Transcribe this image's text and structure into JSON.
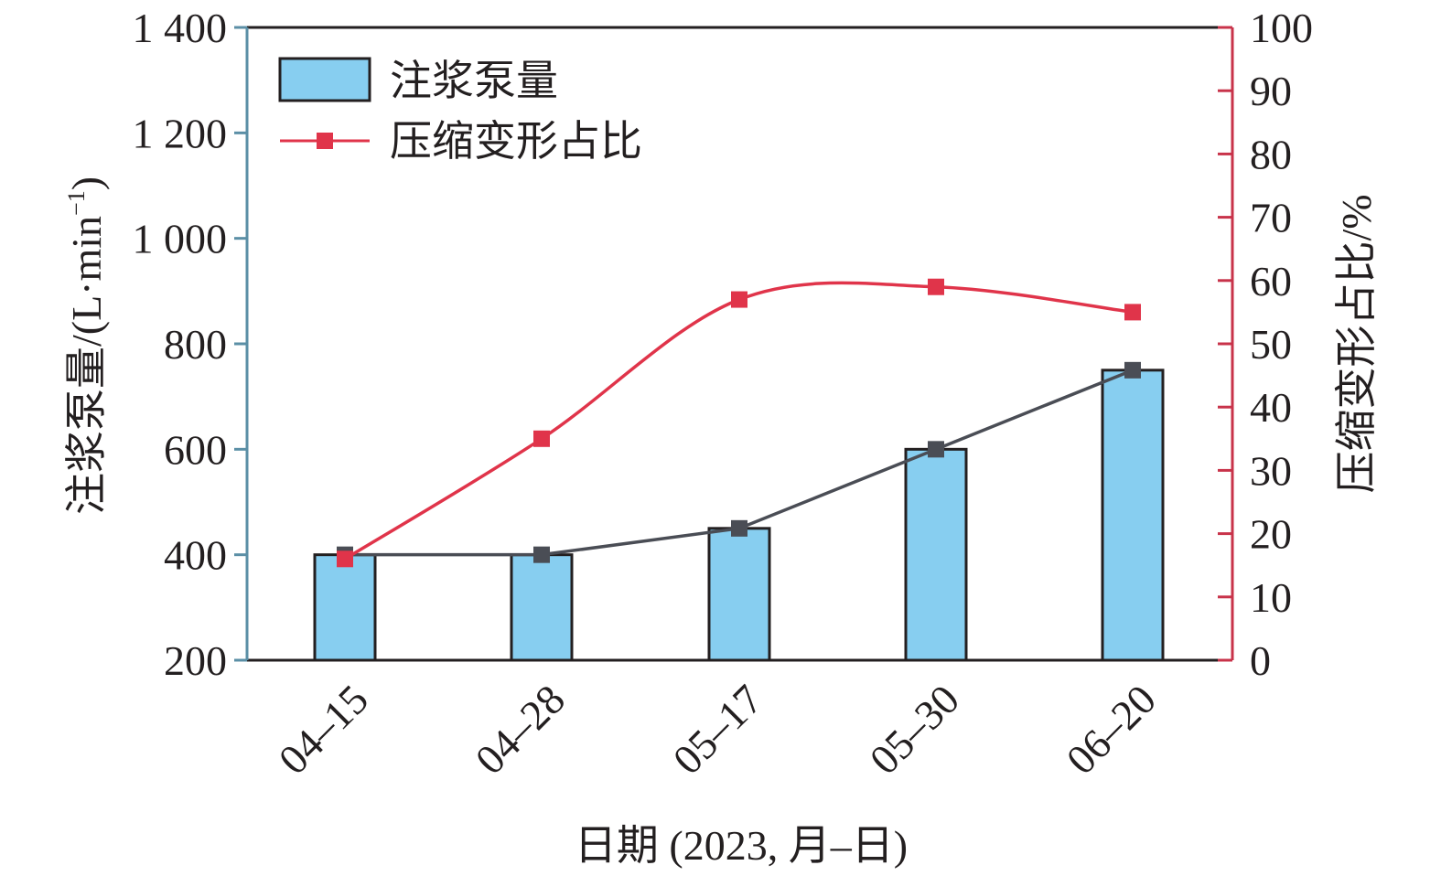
{
  "chart_data": {
    "type": "bar",
    "categories": [
      "04–15",
      "04–28",
      "05–17",
      "05–30",
      "06–20"
    ],
    "xlabel": "日期 (2023, 月–日)",
    "ylabel_left": "注浆泵量/(L·min",
    "ylabel_left_exponent": "−1",
    "ylabel_left_suffix": ")",
    "ylabel_right": "压缩变形占比/%",
    "ylim_left": [
      200,
      1400
    ],
    "ylim_right": [
      0,
      100
    ],
    "yticks_left": [
      200,
      400,
      600,
      800,
      1000,
      1200,
      1400
    ],
    "yticks_left_labels": [
      "200",
      "400",
      "600",
      "800",
      "1 000",
      "1 200",
      "1 400"
    ],
    "yticks_right": [
      0,
      10,
      20,
      30,
      40,
      50,
      60,
      70,
      80,
      90,
      100
    ],
    "yticks_right_labels": [
      "0",
      "10",
      "20",
      "30",
      "40",
      "50",
      "60",
      "70",
      "80",
      "90",
      "100"
    ],
    "grid": false,
    "legend_position": "top-left",
    "series": [
      {
        "name": "注浆泵量",
        "kind": "bar",
        "axis": "left",
        "values": [
          400,
          400,
          450,
          600,
          750
        ],
        "color": "#87cef0",
        "edge_color": "#231f20"
      },
      {
        "kind": "line",
        "axis": "left",
        "values": [
          400,
          400,
          450,
          600,
          750
        ],
        "color": "#4a4d55",
        "marker": "square"
      },
      {
        "name": "压缩变形占比",
        "kind": "line",
        "axis": "right",
        "values": [
          16,
          35,
          57,
          59,
          55
        ],
        "color": "#e0344a",
        "marker": "square",
        "smooth": true
      }
    ],
    "colors": {
      "left_axis": "#5b8fa6",
      "right_axis": "#c8334a",
      "frame": "#231f20"
    }
  }
}
